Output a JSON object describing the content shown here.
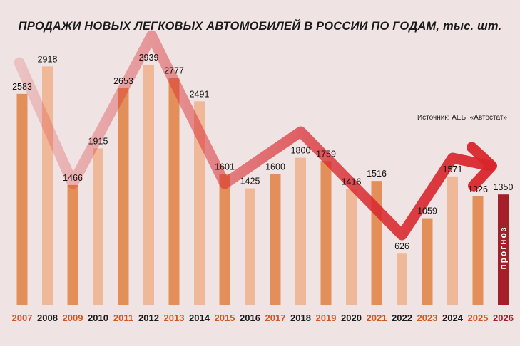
{
  "chart_data": {
    "type": "bar",
    "title": "ПРОДАЖИ НОВЫХ ЛЕГКОВЫХ АВТОМОБИЛЕЙ В РОССИИ ПО ГОДАМ, тыс. шт.",
    "source": "Источник: АЕБ, «Автостат»",
    "forecast_label": "прогноз",
    "categories": [
      "2007",
      "2008",
      "2009",
      "2010",
      "2011",
      "2012",
      "2013",
      "2014",
      "2015",
      "2016",
      "2017",
      "2018",
      "2019",
      "2020",
      "2021",
      "2022",
      "2023",
      "2024",
      "2025",
      "2026"
    ],
    "values": [
      2583,
      2918,
      1466,
      1915,
      2653,
      2939,
      2777,
      2491,
      1601,
      1425,
      1600,
      1800,
      1759,
      1416,
      1516,
      626,
      1059,
      1571,
      1326,
      1350
    ],
    "value_labels": [
      "2583",
      "2918",
      "1466",
      "1915",
      "2653",
      "2939",
      "2777",
      "2491",
      "1601",
      "1425",
      "1600",
      "1800",
      "1759",
      "1416",
      "1516",
      "626",
      "1059",
      "1571",
      "1326",
      "1350"
    ],
    "forecast_category": "2026",
    "ylim": [
      0,
      3000
    ],
    "xlabel": "",
    "ylabel": "",
    "grid": false,
    "colors": {
      "background": "#efe4e3",
      "bar_dark": "#e38f5a",
      "bar_light": "#efb999",
      "bar_forecast": "#a51f2a",
      "label_year_dark": "#d4561e",
      "label_year_light": "#1a1a1a",
      "trend_arrow": "#d8262c"
    }
  }
}
